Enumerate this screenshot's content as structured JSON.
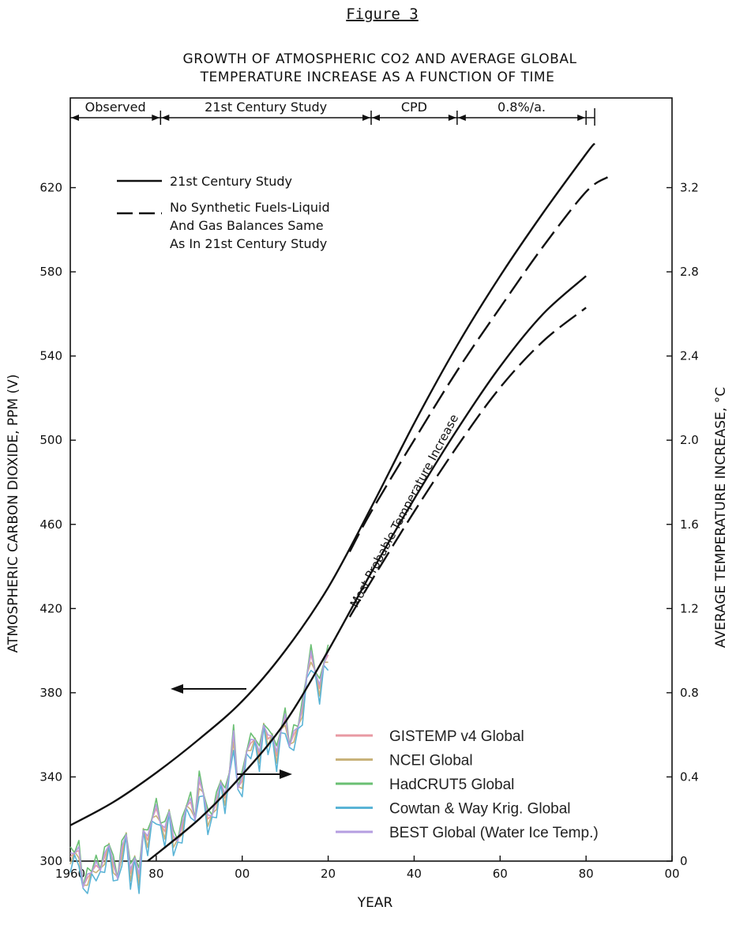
{
  "chart_data": {
    "type": "line",
    "figure_label": "Figure 3",
    "title_line1": "GROWTH OF ATMOSPHERIC CO2 AND AVERAGE GLOBAL",
    "title_line2": "TEMPERATURE INCREASE AS A FUNCTION OF TIME",
    "xlabel": "YEAR",
    "ylabel_left": "ATMOSPHERIC CARBON DIOXIDE, PPM (V)",
    "ylabel_right": "AVERAGE TEMPERATURE INCREASE, °C",
    "xlim": [
      1960,
      2100
    ],
    "ylim_left": [
      300,
      660
    ],
    "ylim_right": [
      0,
      3.6
    ],
    "x_ticks": [
      {
        "value": 1960,
        "label": "1960"
      },
      {
        "value": 1980,
        "label": "80"
      },
      {
        "value": 2000,
        "label": "00"
      },
      {
        "value": 2020,
        "label": "20"
      },
      {
        "value": 2040,
        "label": "40"
      },
      {
        "value": 2060,
        "label": "60"
      },
      {
        "value": 2080,
        "label": "80"
      },
      {
        "value": 2100,
        "label": "00"
      }
    ],
    "y_left_ticks": [
      {
        "value": 300,
        "label": "300"
      },
      {
        "value": 340,
        "label": "340"
      },
      {
        "value": 380,
        "label": "380"
      },
      {
        "value": 420,
        "label": "420"
      },
      {
        "value": 460,
        "label": "460"
      },
      {
        "value": 500,
        "label": "500"
      },
      {
        "value": 540,
        "label": "540"
      },
      {
        "value": 580,
        "label": "580"
      },
      {
        "value": 620,
        "label": "620"
      }
    ],
    "y_right_ticks": [
      {
        "value": 0,
        "label": "0"
      },
      {
        "value": 0.4,
        "label": "0.4"
      },
      {
        "value": 0.8,
        "label": "0.8"
      },
      {
        "value": 1.2,
        "label": "1.2"
      },
      {
        "value": 1.6,
        "label": "1.6"
      },
      {
        "value": 2.0,
        "label": "2.0"
      },
      {
        "value": 2.4,
        "label": "2.4"
      },
      {
        "value": 2.8,
        "label": "2.8"
      },
      {
        "value": 3.2,
        "label": "3.2"
      }
    ],
    "periods": [
      {
        "label": "Observed",
        "start": 1960,
        "end": 1981
      },
      {
        "label": "21st Century Study",
        "start": 1981,
        "end": 2030
      },
      {
        "label": "CPD",
        "start": 2030,
        "end": 2050
      },
      {
        "label": "0.8%/a.",
        "start": 2050,
        "end": 2080
      }
    ],
    "annotation": "Most Probable Temperature Increase",
    "legend_upper": [
      {
        "label": "21st Century Study",
        "style": "solid"
      },
      {
        "label_lines": [
          "No Synthetic Fuels-Liquid",
          "And Gas Balances Same",
          "As In 21st Century Study"
        ],
        "style": "dashed"
      }
    ],
    "projections": [
      {
        "name": "CO2 21st Century Study",
        "axis": "left",
        "style": "solid",
        "points": [
          [
            1960,
            317
          ],
          [
            1970,
            328
          ],
          [
            1980,
            342
          ],
          [
            1990,
            358
          ],
          [
            2000,
            376
          ],
          [
            2010,
            400
          ],
          [
            2020,
            430
          ],
          [
            2030,
            468
          ],
          [
            2040,
            508
          ],
          [
            2050,
            545
          ],
          [
            2060,
            578
          ],
          [
            2070,
            608
          ],
          [
            2080,
            636
          ],
          [
            2082,
            641
          ]
        ]
      },
      {
        "name": "CO2 No Synthetic Fuels",
        "axis": "left",
        "style": "dashed",
        "points": [
          [
            2025,
            447
          ],
          [
            2030,
            466
          ],
          [
            2040,
            500
          ],
          [
            2050,
            533
          ],
          [
            2060,
            563
          ],
          [
            2070,
            592
          ],
          [
            2080,
            618
          ],
          [
            2085,
            625
          ]
        ]
      },
      {
        "name": "Temperature 21st Century Study",
        "axis": "right",
        "style": "solid",
        "points": [
          [
            1978,
            0
          ],
          [
            1990,
            0.2
          ],
          [
            2000,
            0.41
          ],
          [
            2010,
            0.66
          ],
          [
            2020,
            1.0
          ],
          [
            2030,
            1.37
          ],
          [
            2040,
            1.72
          ],
          [
            2050,
            2.05
          ],
          [
            2060,
            2.35
          ],
          [
            2070,
            2.6
          ],
          [
            2080,
            2.78
          ]
        ]
      },
      {
        "name": "Temperature No Synthetic Fuels",
        "axis": "right",
        "style": "dashed",
        "points": [
          [
            2025,
            1.16
          ],
          [
            2030,
            1.33
          ],
          [
            2040,
            1.66
          ],
          [
            2050,
            1.97
          ],
          [
            2060,
            2.25
          ],
          [
            2070,
            2.47
          ],
          [
            2080,
            2.63
          ]
        ]
      }
    ],
    "observed_legend": [
      {
        "name": "GISTEMP v4 Global",
        "color": "#e89aa3"
      },
      {
        "name": "NCEI Global",
        "color": "#c8b27a"
      },
      {
        "name": "HadCRUT5 Global",
        "color": "#6abf73"
      },
      {
        "name": "Cowtan & Way Krig. Global",
        "color": "#5ab4d6"
      },
      {
        "name": "BEST Global (Water Ice Temp.)",
        "color": "#b59ee0"
      }
    ],
    "observed_axis": "right",
    "observed_years": [
      1960,
      1961,
      1962,
      1963,
      1964,
      1965,
      1966,
      1967,
      1968,
      1969,
      1970,
      1971,
      1972,
      1973,
      1974,
      1975,
      1976,
      1977,
      1978,
      1979,
      1980,
      1981,
      1982,
      1983,
      1984,
      1985,
      1986,
      1987,
      1988,
      1989,
      1990,
      1991,
      1992,
      1993,
      1994,
      1995,
      1996,
      1997,
      1998,
      1999,
      2000,
      2001,
      2002,
      2003,
      2004,
      2005,
      2006,
      2007,
      2008,
      2009,
      2010,
      2011,
      2012,
      2013,
      2014,
      2015,
      2016,
      2017,
      2018,
      2019,
      2020
    ],
    "observed_base": [
      0.02,
      0.04,
      0.05,
      -0.12,
      -0.08,
      -0.05,
      -0.02,
      -0.04,
      0.02,
      0.08,
      -0.02,
      -0.08,
      0.05,
      0.13,
      -0.06,
      0.02,
      -0.08,
      0.15,
      0.1,
      0.2,
      0.25,
      0.18,
      0.14,
      0.24,
      0.1,
      0.1,
      0.16,
      0.26,
      0.28,
      0.2,
      0.38,
      0.32,
      0.2,
      0.22,
      0.28,
      0.38,
      0.3,
      0.42,
      0.6,
      0.35,
      0.38,
      0.52,
      0.56,
      0.58,
      0.5,
      0.65,
      0.58,
      0.6,
      0.5,
      0.62,
      0.68,
      0.55,
      0.6,
      0.64,
      0.72,
      0.88,
      0.98,
      0.9,
      0.82,
      0.94,
      0.98
    ]
  }
}
